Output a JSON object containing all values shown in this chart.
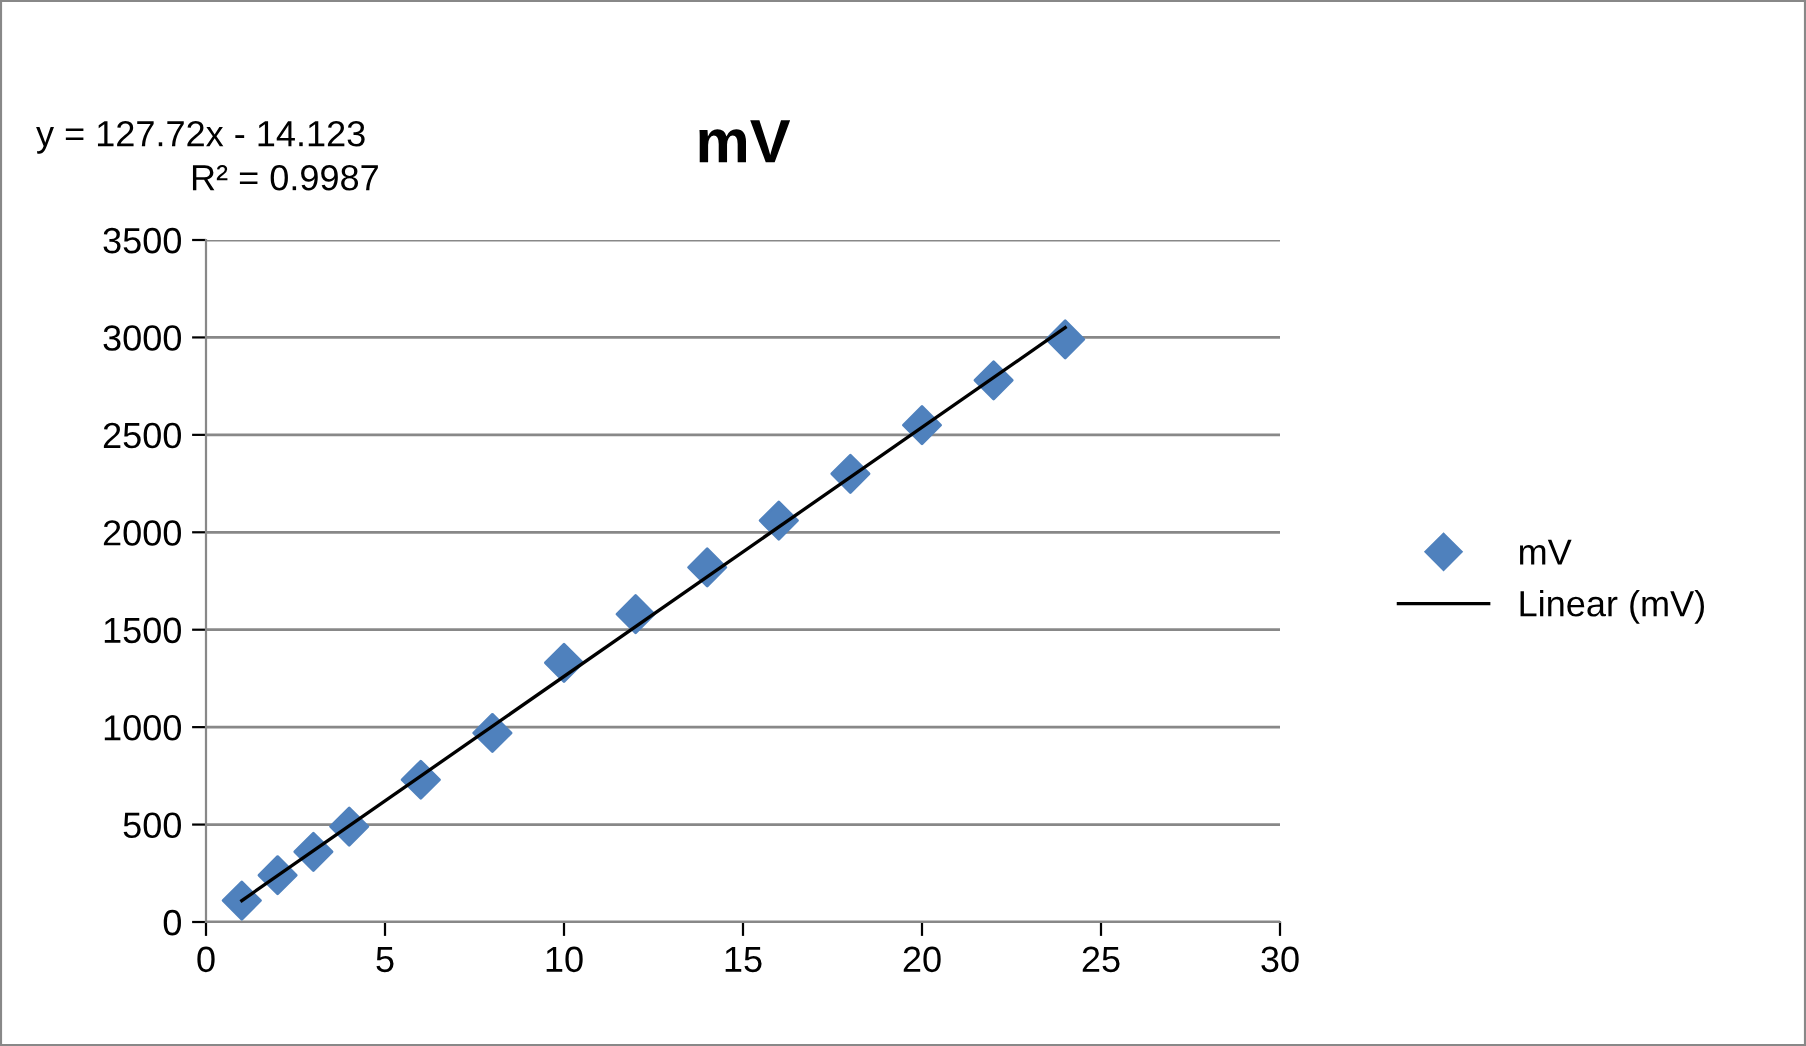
{
  "chart_data": {
    "type": "scatter",
    "title": "mV",
    "series": [
      {
        "name": "mV",
        "color": "#4f81bd",
        "marker": "diamond",
        "x": [
          1,
          2,
          3,
          4,
          6,
          8,
          10,
          12,
          14,
          16,
          18,
          20,
          22,
          24
        ],
        "values": [
          110,
          240,
          360,
          490,
          730,
          970,
          1330,
          1580,
          1820,
          2060,
          2300,
          2550,
          2780,
          2990
        ]
      },
      {
        "name": "Linear (mV)",
        "type": "line",
        "color": "#000000",
        "marker": "none",
        "x": [
          1,
          24
        ],
        "values": [
          110,
          3050
        ]
      }
    ],
    "annotations": [
      "y = 127.72x - 14.123",
      "R² = 0.9987"
    ],
    "xlim": [
      0,
      30
    ],
    "xticks": [
      0,
      5,
      10,
      15,
      20,
      25,
      30
    ],
    "ylim": [
      0,
      3500
    ],
    "yticks": [
      0,
      500,
      1000,
      1500,
      2000,
      2500,
      3000,
      3500
    ],
    "grid": "y",
    "legend": "right"
  }
}
